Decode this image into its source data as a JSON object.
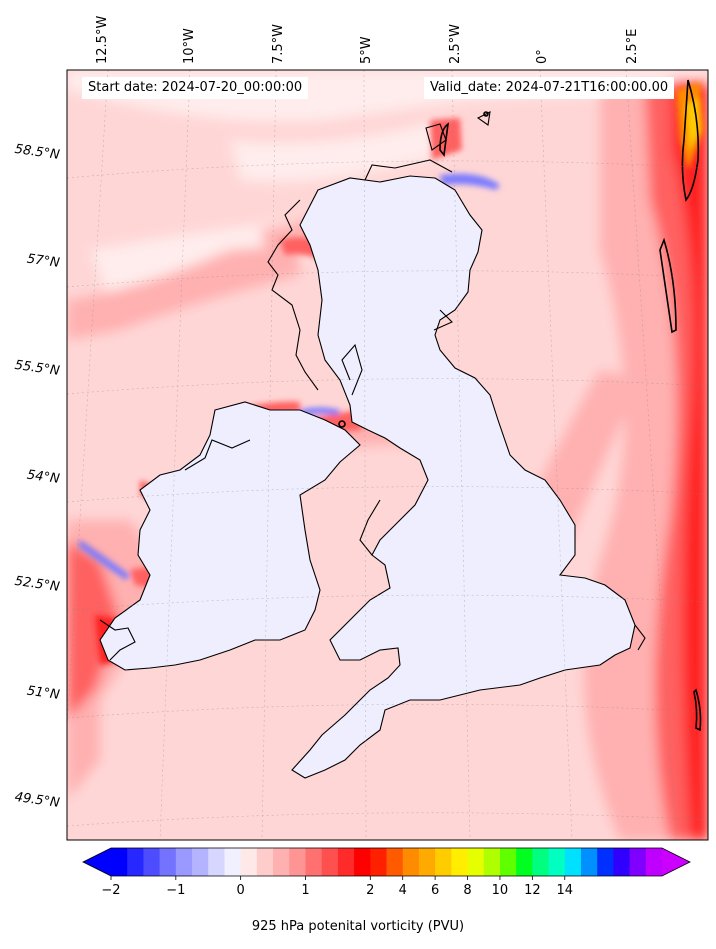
{
  "header": {
    "start_date": "Start date: 2024-07-20_00:00:00",
    "valid_date": "Valid_date: 2024-07-21T16:00:00.00"
  },
  "axes": {
    "lon_labels": [
      "12.5°W",
      "10°W",
      "7.5°W",
      "5°W",
      "2.5°W",
      "0°",
      "2.5°E"
    ],
    "lat_labels": [
      "58.5°N",
      "57°N",
      "55.5°N",
      "54°N",
      "52.5°N",
      "51°N",
      "49.5°N"
    ]
  },
  "colorbar": {
    "label": "925 hPa potenital vorticity (PVU)",
    "ticks": [
      "−2",
      "−1",
      "0",
      "1",
      "2",
      "4",
      "6",
      "8",
      "10",
      "12",
      "14"
    ],
    "colors": [
      "#0000ff",
      "#2727ff",
      "#4d4dff",
      "#7373ff",
      "#9999ff",
      "#b3b3ff",
      "#d6d6ff",
      "#f0f0ff",
      "#ffe8e8",
      "#ffcccc",
      "#ffb0b0",
      "#ff9494",
      "#ff7070",
      "#ff5050",
      "#ff2a2a",
      "#ff0000",
      "#ff2000",
      "#ff5a00",
      "#ff8c00",
      "#ffaa00",
      "#ffcc00",
      "#ffee00",
      "#e6ff00",
      "#b0ff00",
      "#60ff00",
      "#00ff20",
      "#00ff80",
      "#00ffc0",
      "#00e0ff",
      "#0090ff",
      "#0030ff",
      "#3000ff",
      "#8000ff",
      "#c000ff"
    ],
    "under_color": "#0000ff",
    "over_color": "#cc00ff"
  },
  "map_colors": {
    "background": "#ffd6d6",
    "light": "#ffecec",
    "neutral": "#eeeeff",
    "mid": "#ffb0b0",
    "strong": "#ff6060",
    "intense": "#ff2020",
    "orange": "#ff8c00",
    "yellow": "#ffcc00",
    "blue": "#7a7aff",
    "coast": "#000000"
  }
}
